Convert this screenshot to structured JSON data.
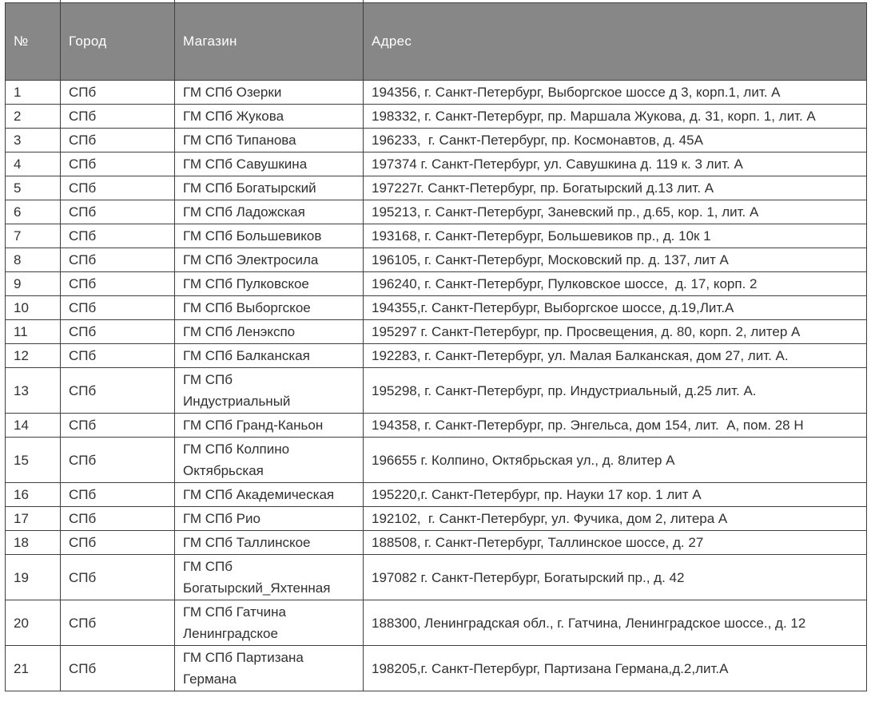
{
  "colors": {
    "header_bg": "#878787",
    "header_text": "#ffffff",
    "border": "#3f3f3f",
    "body_text": "#303030",
    "row_bg": "#ffffff"
  },
  "table": {
    "columns": [
      {
        "key": "num",
        "label": "№"
      },
      {
        "key": "city",
        "label": "Город"
      },
      {
        "key": "store",
        "label": "Магазин"
      },
      {
        "key": "address",
        "label": "Адрес"
      }
    ],
    "rows": [
      {
        "num": "1",
        "city": "СПб",
        "store": "ГМ СПб Озерки",
        "address": "194356, г. Санкт-Петербург, Выборгское шоссе д 3, корп.1, лит. А"
      },
      {
        "num": "2",
        "city": "СПб",
        "store": "ГМ СПб Жукова",
        "address": "198332, г. Санкт-Петербург, пр. Маршала Жукова, д. 31, корп. 1, лит. А"
      },
      {
        "num": "3",
        "city": "СПб",
        "store": "ГМ СПб Типанова",
        "address": "196233,  г. Санкт-Петербург, пр. Космонавтов, д. 45А"
      },
      {
        "num": "4",
        "city": "СПб",
        "store": "ГМ СПб Савушкина",
        "address": "197374 г. Санкт-Петербург, ул. Савушкина д. 119 к. 3 лит. А"
      },
      {
        "num": "5",
        "city": "СПб",
        "store": "ГМ СПб Богатырский",
        "address": "197227г. Санкт-Петербург, пр. Богатырский д.13 лит. А"
      },
      {
        "num": "6",
        "city": "СПб",
        "store": "ГМ СПб Ладожская",
        "address": "195213, г. Санкт-Петербург, Заневский пр., д.65, кор. 1, лит. А"
      },
      {
        "num": "7",
        "city": "СПб",
        "store": "ГМ СПб Большевиков",
        "address": "193168, г. Санкт-Петербург, Большевиков пр., д. 10к 1"
      },
      {
        "num": "8",
        "city": "СПб",
        "store": "ГМ СПб Электросила",
        "address": "196105, г. Санкт-Петербург, Московский пр. д. 137, лит А"
      },
      {
        "num": "9",
        "city": "СПб",
        "store": "ГМ СПб Пулковское",
        "address": "196240, г. Санкт-Петербург, Пулковское шоссе,  д. 17, корп. 2"
      },
      {
        "num": "10",
        "city": "СПб",
        "store": "ГМ СПб Выборгское",
        "address": "194355,г. Санкт-Петербург, Выборгское шоссе, д.19,Лит.А"
      },
      {
        "num": "11",
        "city": "СПб",
        "store": "ГМ СПб Ленэкспо",
        "address": "195297 г. Санкт-Петербург, пр. Просвещения, д. 80, корп. 2, литер А"
      },
      {
        "num": "12",
        "city": "СПб",
        "store": "ГМ СПб Балканская",
        "address": "192283, г. Санкт-Петербург, ул. Малая Балканская, дом 27, лит. А."
      },
      {
        "num": "13",
        "city": "СПб",
        "store": "ГМ СПб\nИндустриальный",
        "address": "195298, г. Санкт-Петербург, пр. Индустриальный, д.25 лит. А."
      },
      {
        "num": "14",
        "city": "СПб",
        "store": "ГМ СПб Гранд-Каньон",
        "address": "194358, г. Санкт-Петербург, пр. Энгельса, дом 154, лит.  А, пом. 28 Н"
      },
      {
        "num": "15",
        "city": "СПб",
        "store": "ГМ СПб Колпино\nОктябрьская",
        "address": "196655 г. Колпино, Октябрьская ул., д. 8литер А"
      },
      {
        "num": "16",
        "city": "СПб",
        "store": "ГМ СПб Академическая",
        "address": "195220,г. Санкт-Петербург, пр. Науки 17 кор. 1 лит А"
      },
      {
        "num": "17",
        "city": "СПб",
        "store": "ГМ СПб Рио",
        "address": "192102,  г. Санкт-Петербург, ул. Фучика, дом 2, литера А"
      },
      {
        "num": "18",
        "city": "СПб",
        "store": "ГМ СПб Таллинское",
        "address": "188508, г. Санкт-Петербург, Таллинское шоссе, д. 27"
      },
      {
        "num": "19",
        "city": "СПб",
        "store": "ГМ СПб\nБогатырский_Яхтенная",
        "address": "197082 г. Санкт-Петербург, Богатырский пр., д. 42"
      },
      {
        "num": "20",
        "city": "СПб",
        "store": "ГМ СПб Гатчина\nЛенинградское",
        "address": "188300, Ленинградская обл., г. Гатчина, Ленинградское шоссе., д. 12"
      },
      {
        "num": "21",
        "city": "СПб",
        "store": "ГМ СПб Партизана\nГермана",
        "address": "198205,г. Санкт-Петербург, Партизана Германа,д.2,лит.А"
      }
    ]
  }
}
